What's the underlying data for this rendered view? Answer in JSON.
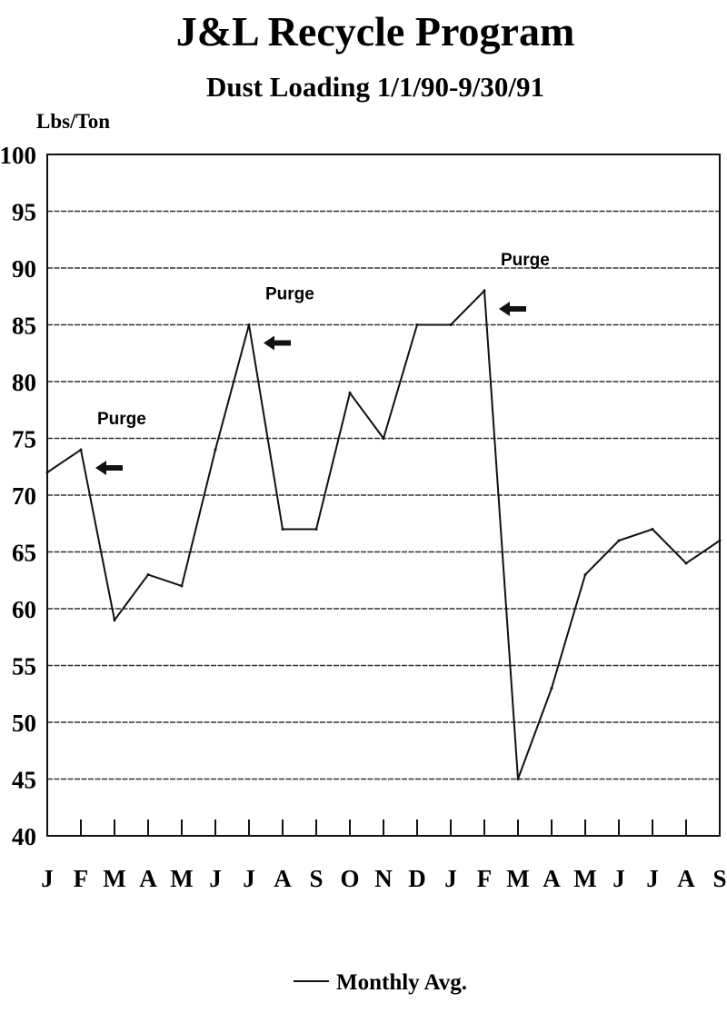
{
  "chart_data": {
    "type": "line",
    "title": "J&L Recycle Program",
    "subtitle": "Dust Loading 1/1/90-9/30/91",
    "xlabel": "",
    "ylabel": "Lbs/Ton",
    "ylim": [
      40,
      100
    ],
    "yticks": [
      40,
      45,
      50,
      55,
      60,
      65,
      70,
      75,
      80,
      85,
      90,
      95,
      100
    ],
    "grid": true,
    "categories": [
      "J",
      "F",
      "M",
      "A",
      "M",
      "J",
      "J",
      "A",
      "S",
      "O",
      "N",
      "D",
      "J",
      "F",
      "M",
      "A",
      "M",
      "J",
      "J",
      "A",
      "S"
    ],
    "series": [
      {
        "name": "Monthly Avg.",
        "values": [
          72,
          74,
          59,
          63,
          62,
          74,
          85,
          67,
          67,
          79,
          75,
          85,
          85,
          88,
          45,
          53,
          63,
          66,
          67,
          64,
          66
        ]
      }
    ],
    "annotations": [
      {
        "text": "Purge",
        "index": 1
      },
      {
        "text": "Purge",
        "index": 6
      },
      {
        "text": "Purge",
        "index": 13
      }
    ],
    "legend": {
      "label": "Monthly Avg.",
      "position": "bottom-center"
    }
  }
}
